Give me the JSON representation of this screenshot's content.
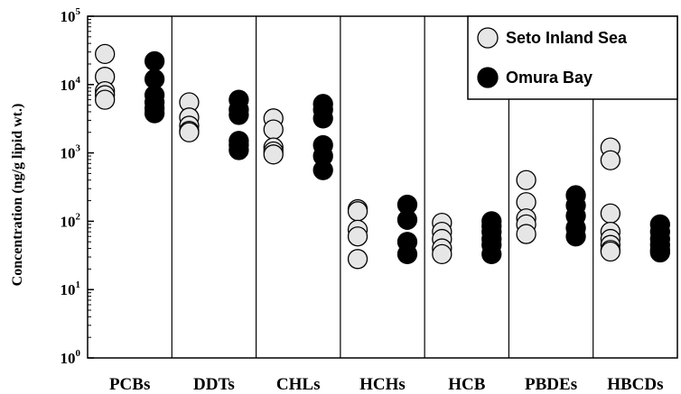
{
  "chart_data": {
    "type": "scatter",
    "ylabel": "Concentration (ng/g lipid wt.)",
    "yscale": "log",
    "ylim": [
      1,
      100000
    ],
    "ytick_base": "10",
    "ytick_exponents": [
      "0",
      "1",
      "2",
      "3",
      "4",
      "5"
    ],
    "categories": [
      "PCBs",
      "DDTs",
      "CHLs",
      "HCHs",
      "HCB",
      "PBDEs",
      "HBCDs"
    ],
    "legend": {
      "placement": "top-right"
    },
    "series": [
      {
        "name": "Seto Inland Sea",
        "color": "#e6e6e6",
        "values": [
          [
            28000,
            13000,
            8000,
            7000,
            6000
          ],
          [
            5500,
            3300,
            2500,
            2100,
            2000
          ],
          [
            3200,
            2200,
            1200,
            1050,
            950
          ],
          [
            150,
            140,
            75,
            60,
            28
          ],
          [
            95,
            70,
            55,
            40,
            33
          ],
          [
            400,
            190,
            110,
            90,
            65
          ],
          [
            1200,
            780,
            130,
            70,
            55,
            45,
            38,
            36
          ]
        ]
      },
      {
        "name": "Omura Bay",
        "color": "#000000",
        "values": [
          [
            22000,
            12000,
            7000,
            5500,
            4500,
            3800
          ],
          [
            6000,
            4300,
            3600,
            1500,
            1300,
            1100
          ],
          [
            5200,
            4300,
            3200,
            1300,
            900,
            560
          ],
          [
            175,
            105,
            50,
            33
          ],
          [
            100,
            85,
            70,
            55,
            45,
            33
          ],
          [
            240,
            170,
            120,
            80,
            60
          ],
          [
            90,
            70,
            55,
            45,
            38,
            35
          ]
        ]
      }
    ]
  }
}
